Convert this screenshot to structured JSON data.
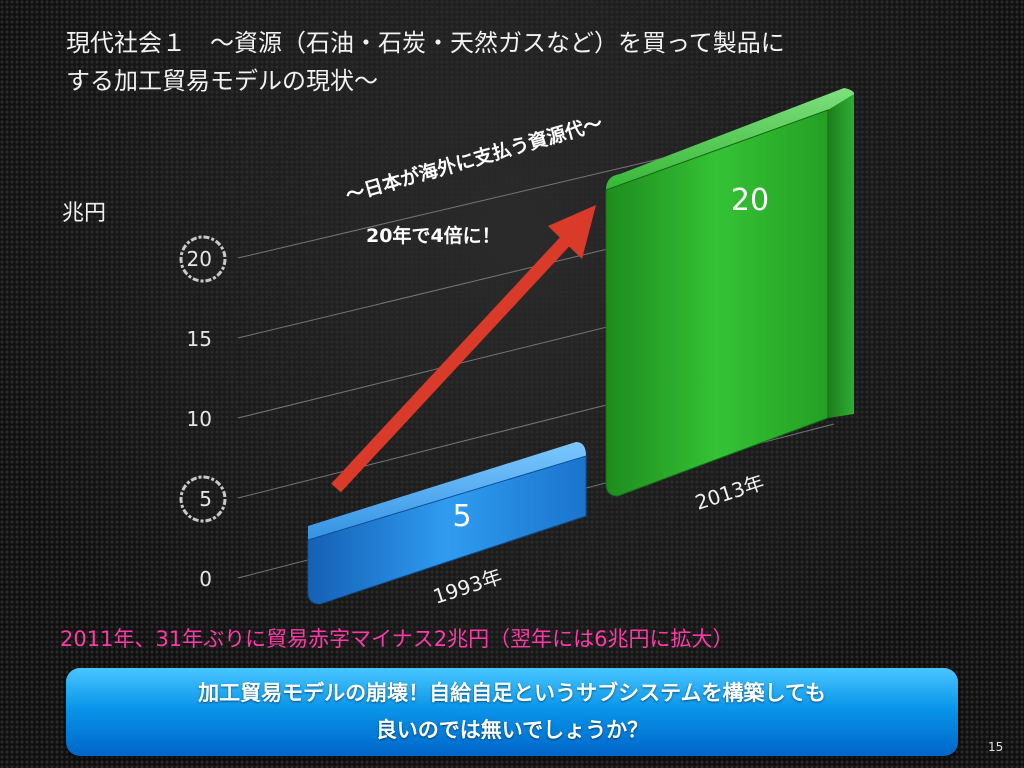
{
  "slide": {
    "title_line1": "現代社会１　～資源（石油・石炭・天然ガスなど）を買って製品に",
    "title_line2": "する加工貿易モデルの現状～",
    "note": "2011年、31年ぶりに貿易赤字マイナス2兆円（翌年には6兆円に拡大）",
    "callout_line1": "加工貿易モデルの崩壊！自給自足というサブシステムを構築しても",
    "callout_line2": "良いのでは無いでしょうか？",
    "page_number": "15"
  },
  "colors": {
    "bar_1993": "#2a8fe0",
    "bar_2013": "#2cb82c",
    "arrow": "#d93a2a",
    "note": "#ff3aa8",
    "callout": "#0a96ea"
  },
  "chart_data": {
    "type": "bar",
    "ylabel": "兆円",
    "categories": [
      "1993年",
      "2013年"
    ],
    "values": [
      5,
      20
    ],
    "data_labels": [
      "5",
      "20"
    ],
    "yticks": [
      "0",
      "5",
      "10",
      "15",
      "20"
    ],
    "ytick_values": [
      0,
      5,
      10,
      15,
      20
    ],
    "ylim": [
      0,
      20
    ],
    "grid": true,
    "circled_ticks": [
      "5",
      "20"
    ],
    "annotation_line1": "～日本が海外に支払う資源代～",
    "annotation_line2": "20年で4倍に！"
  }
}
